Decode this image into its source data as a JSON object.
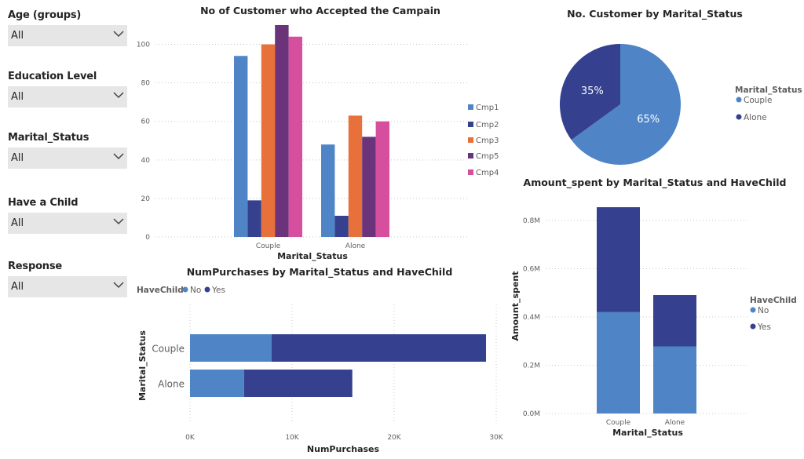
{
  "filters": [
    {
      "title": "Age (groups)",
      "value": "All"
    },
    {
      "title": "Education Level",
      "value": "All"
    },
    {
      "title": "Marital_Status",
      "value": "All"
    },
    {
      "title": "Have a Child",
      "value": "All"
    },
    {
      "title": "Response",
      "value": "All"
    }
  ],
  "colors": {
    "cmp1": "#4f85c6",
    "cmp2": "#35408f",
    "cmp3": "#e8703a",
    "cmp5": "#6b347a",
    "cmp4": "#d64f9f",
    "no": "#4f85c6",
    "yes": "#35408f",
    "couple": "#4f85c6",
    "alone": "#35408f"
  },
  "chart_data": [
    {
      "type": "bar",
      "title": "No of Customer who Accepted the Campain",
      "xlabel": "Marital_Status",
      "ylabel": "",
      "categories": [
        "Couple",
        "Alone"
      ],
      "ylim": [
        0,
        110
      ],
      "yticks": [
        "0",
        "20",
        "40",
        "60",
        "80",
        "100"
      ],
      "legend_position": "right",
      "series": [
        {
          "name": "Cmp1",
          "values": [
            94,
            48
          ]
        },
        {
          "name": "Cmp2",
          "values": [
            19,
            11
          ]
        },
        {
          "name": "Cmp3",
          "values": [
            100,
            63
          ]
        },
        {
          "name": "Cmp5",
          "values": [
            110,
            52
          ]
        },
        {
          "name": "Cmp4",
          "values": [
            104,
            60
          ]
        }
      ]
    },
    {
      "type": "pie",
      "title": "No. Customer by Marital_Status",
      "legend_title": "Marital_Status",
      "legend_position": "right",
      "labels": [
        "Couple",
        "Alone"
      ],
      "values": [
        65,
        35
      ],
      "value_labels": [
        "65%",
        "35%"
      ]
    },
    {
      "type": "bar",
      "orientation": "horizontal",
      "stacked": true,
      "title": "NumPurchases by Marital_Status and HaveChild",
      "xlabel": "NumPurchases",
      "ylabel": "Marital_Status",
      "legend_title": "HaveChild",
      "legend_position": "top-left",
      "categories": [
        "Couple",
        "Alone"
      ],
      "xlim": [
        0,
        30000
      ],
      "xticks": [
        "0K",
        "10K",
        "20K",
        "30K"
      ],
      "series": [
        {
          "name": "No",
          "values": [
            8000,
            5300
          ]
        },
        {
          "name": "Yes",
          "values": [
            21000,
            10600
          ]
        }
      ]
    },
    {
      "type": "bar",
      "stacked": true,
      "title": "Amount_spent by Marital_Status and HaveChild",
      "xlabel": "Marital_Status",
      "ylabel": "Amount_spent",
      "legend_title": "HaveChild",
      "legend_position": "right",
      "categories": [
        "Couple",
        "Alone"
      ],
      "ylim": [
        0,
        860000
      ],
      "yticks": [
        "0.0M",
        "0.2M",
        "0.4M",
        "0.6M",
        "0.8M"
      ],
      "series": [
        {
          "name": "No",
          "values": [
            420000,
            278000
          ]
        },
        {
          "name": "Yes",
          "values": [
            435000,
            213000
          ]
        }
      ]
    }
  ]
}
